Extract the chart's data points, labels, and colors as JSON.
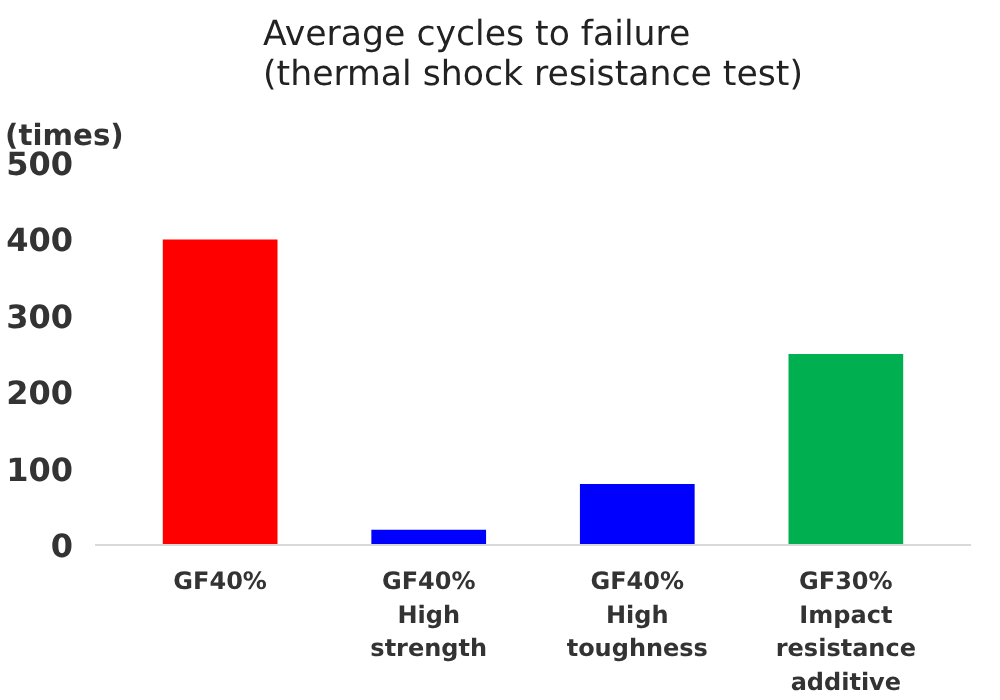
{
  "chart_data": {
    "type": "bar",
    "title": "Average cycles to failure\n(thermal shock resistance test)",
    "ylabel": "(times)",
    "categories": [
      "GF40%",
      "GF40% High strength",
      "GF40% High toughness",
      "GF30% Impact resistance additive"
    ],
    "values": [
      400,
      20,
      80,
      250
    ],
    "colors": [
      "#ff0000",
      "#0000ff",
      "#0000ff",
      "#00b050"
    ],
    "ylim": [
      0,
      500
    ],
    "yticks": [
      0,
      100,
      200,
      300,
      400,
      500
    ],
    "grid": false
  }
}
